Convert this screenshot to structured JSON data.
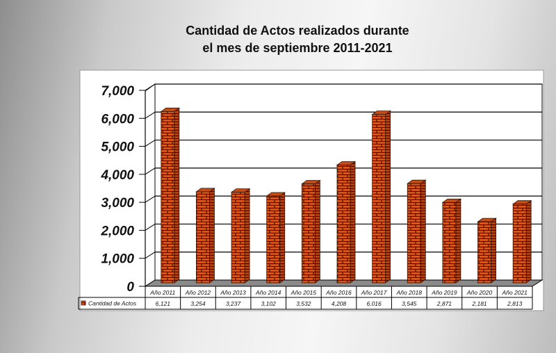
{
  "chart_data": {
    "type": "bar",
    "title": [
      "Cantidad de Actos realizados durante",
      "el mes de septiembre 2011-2021"
    ],
    "categories": [
      "Año 2011",
      "Año 2012",
      "Año 2013",
      "Año 2014",
      "Año 2015",
      "Año 2016",
      "Año 2017",
      "Año 2018",
      "Año 2019",
      "Año 2020",
      "Año 2021"
    ],
    "series": [
      {
        "name": "Cantidad de Actos",
        "values": [
          6121,
          3254,
          3237,
          3102,
          3532,
          4208,
          6016,
          3545,
          2871,
          2181,
          2813
        ],
        "labels": [
          "6,121",
          "3,254",
          "3,237",
          "3,102",
          "3,532",
          "4,208",
          "6,016",
          "3,545",
          "2,871",
          "2,181",
          "2,813"
        ]
      }
    ],
    "ylim": [
      0,
      7000
    ],
    "yticks": [
      "0",
      "1,000",
      "2,000",
      "3,000",
      "4,000",
      "5,000",
      "6,000",
      "7,000"
    ],
    "grid": true,
    "data_table": true,
    "bar_color": "#e0571b",
    "mortar_color": "#3a1605"
  }
}
